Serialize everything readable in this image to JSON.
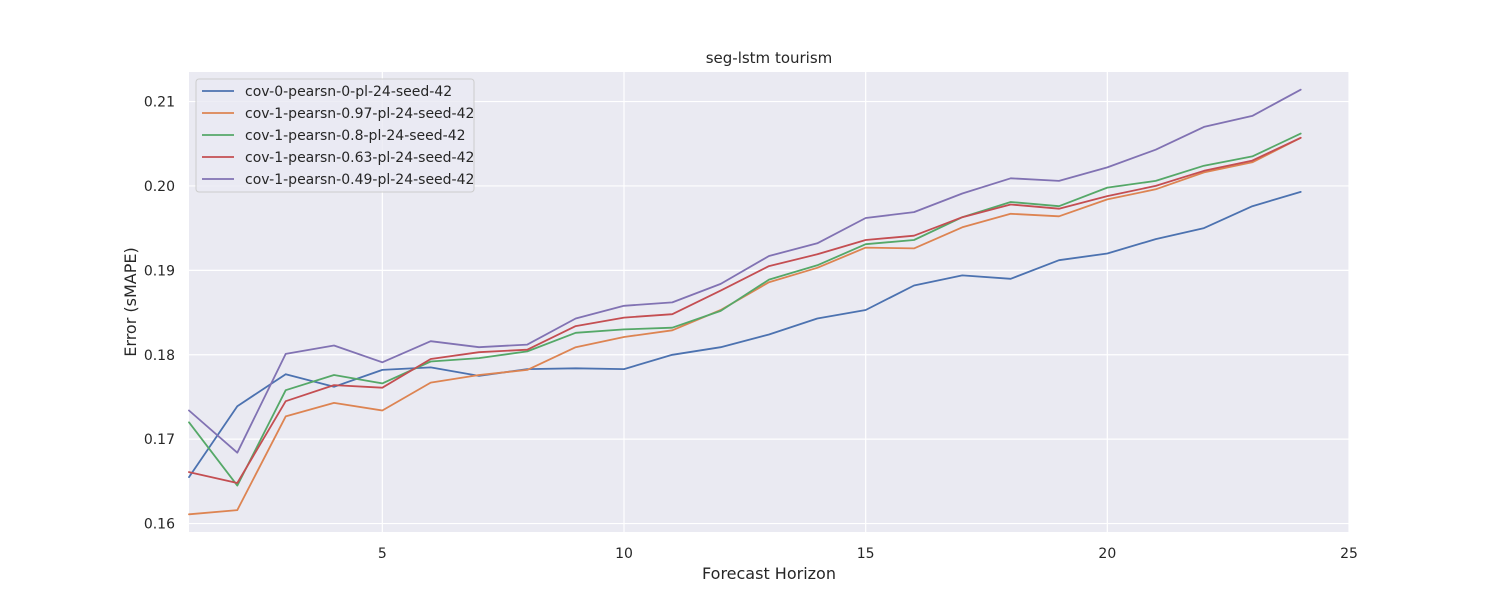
{
  "chart_data": {
    "type": "line",
    "title": "seg-lstm tourism",
    "xlabel": "Forecast Horizon",
    "ylabel": "Error (sMAPE)",
    "xlim": [
      1,
      25
    ],
    "ylim": [
      0.159,
      0.2135
    ],
    "xticks": [
      5,
      10,
      15,
      20,
      25
    ],
    "xtick_labels": [
      "5",
      "10",
      "15",
      "20",
      "25"
    ],
    "yticks": [
      0.16,
      0.17,
      0.18,
      0.19,
      0.2,
      0.21
    ],
    "ytick_labels": [
      "0.16",
      "0.17",
      "0.18",
      "0.19",
      "0.20",
      "0.21"
    ],
    "grid": true,
    "legend_position": "upper-left",
    "x": [
      1,
      2,
      3,
      4,
      5,
      6,
      7,
      8,
      9,
      10,
      11,
      12,
      13,
      14,
      15,
      16,
      17,
      18,
      19,
      20,
      21,
      22,
      23,
      24
    ],
    "series": [
      {
        "name": "cov-0-pearsn-0-pl-24-seed-42",
        "color": "#4c72b0",
        "values": [
          0.1655,
          0.1739,
          0.1777,
          0.1762,
          0.1782,
          0.1785,
          0.1775,
          0.1783,
          0.1784,
          0.1783,
          0.18,
          0.1809,
          0.1824,
          0.1843,
          0.1853,
          0.1882,
          0.1894,
          0.189,
          0.1912,
          0.192,
          0.1937,
          0.195,
          0.1976,
          0.1993
        ]
      },
      {
        "name": "cov-1-pearsn-0.97-pl-24-seed-42",
        "color": "#dd8452",
        "values": [
          0.1611,
          0.1616,
          0.1727,
          0.1743,
          0.1734,
          0.1767,
          0.1776,
          0.1782,
          0.1809,
          0.1821,
          0.1829,
          0.1853,
          0.1886,
          0.1903,
          0.1927,
          0.1926,
          0.1951,
          0.1967,
          0.1964,
          0.1984,
          0.1996,
          0.2016,
          0.2028,
          0.2057
        ]
      },
      {
        "name": "cov-1-pearsn-0.8-pl-24-seed-42",
        "color": "#55a868",
        "values": [
          0.172,
          0.1645,
          0.1758,
          0.1776,
          0.1766,
          0.1792,
          0.1796,
          0.1804,
          0.1826,
          0.183,
          0.1832,
          0.1852,
          0.1889,
          0.1906,
          0.1931,
          0.1936,
          0.1963,
          0.1981,
          0.1976,
          0.1998,
          0.2006,
          0.2024,
          0.2035,
          0.2062
        ]
      },
      {
        "name": "cov-1-pearsn-0.63-pl-24-seed-42",
        "color": "#c44e52",
        "values": [
          0.1661,
          0.1648,
          0.1745,
          0.1764,
          0.1761,
          0.1795,
          0.1803,
          0.1806,
          0.1834,
          0.1844,
          0.1848,
          0.1876,
          0.1905,
          0.1919,
          0.1936,
          0.1941,
          0.1963,
          0.1978,
          0.1973,
          0.1988,
          0.2,
          0.2018,
          0.203,
          0.2057
        ]
      },
      {
        "name": "cov-1-pearsn-0.49-pl-24-seed-42",
        "color": "#8172b3",
        "values": [
          0.1734,
          0.1684,
          0.1801,
          0.1811,
          0.1791,
          0.1816,
          0.1809,
          0.1812,
          0.1843,
          0.1858,
          0.1862,
          0.1884,
          0.1917,
          0.1932,
          0.1962,
          0.1969,
          0.1991,
          0.2009,
          0.2006,
          0.2022,
          0.2043,
          0.207,
          0.2083,
          0.2114
        ]
      }
    ]
  }
}
